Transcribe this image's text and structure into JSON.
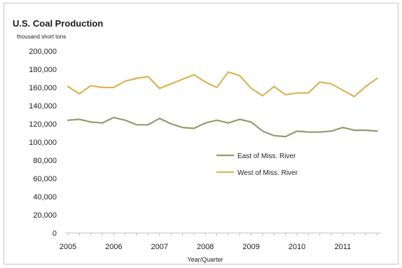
{
  "chart_data": {
    "type": "line",
    "title": "U.S. Coal Production",
    "unit_label": "thousand short tons",
    "xlabel": "Year/Quarter",
    "ylabel": "",
    "ylim": [
      0,
      200000
    ],
    "yticks": [
      0,
      20000,
      40000,
      60000,
      80000,
      100000,
      120000,
      140000,
      160000,
      180000,
      200000
    ],
    "ytick_labels": [
      "0",
      "20,000",
      "40,000",
      "60,000",
      "80,000",
      "100,000",
      "120,000",
      "140,000",
      "160,000",
      "180,000",
      "200,000"
    ],
    "year_labels": [
      "2005",
      "2006",
      "2007",
      "2008",
      "2009",
      "2010",
      "2011"
    ],
    "quarters_per_year": 4,
    "x": [
      "2005 Q1",
      "2005 Q2",
      "2005 Q3",
      "2005 Q4",
      "2006 Q1",
      "2006 Q2",
      "2006 Q3",
      "2006 Q4",
      "2007 Q1",
      "2007 Q2",
      "2007 Q3",
      "2007 Q4",
      "2008 Q1",
      "2008 Q2",
      "2008 Q3",
      "2008 Q4",
      "2009 Q1",
      "2009 Q2",
      "2009 Q3",
      "2009 Q4",
      "2010 Q1",
      "2010 Q2",
      "2010 Q3",
      "2010 Q4",
      "2011 Q1",
      "2011 Q2",
      "2011 Q3",
      "2011 Q4"
    ],
    "grid": false,
    "legend_position": "right",
    "series": [
      {
        "name": "East of Miss. River",
        "color": "#8f9e6b",
        "values": [
          124000,
          125000,
          122000,
          121000,
          127000,
          124000,
          119000,
          119000,
          126000,
          120000,
          116000,
          115000,
          121000,
          124000,
          121000,
          125000,
          122000,
          112000,
          107000,
          106000,
          112000,
          111000,
          111000,
          112000,
          116000,
          113000,
          113000,
          112000
        ]
      },
      {
        "name": "West of Miss. River",
        "color": "#d9b557",
        "values": [
          161000,
          153000,
          162000,
          160000,
          160000,
          167000,
          170000,
          172000,
          159000,
          164000,
          169000,
          174000,
          166000,
          160000,
          177000,
          173000,
          159000,
          151000,
          161000,
          152000,
          154000,
          154000,
          166000,
          164000,
          157000,
          150000,
          161000,
          170000
        ]
      }
    ]
  }
}
